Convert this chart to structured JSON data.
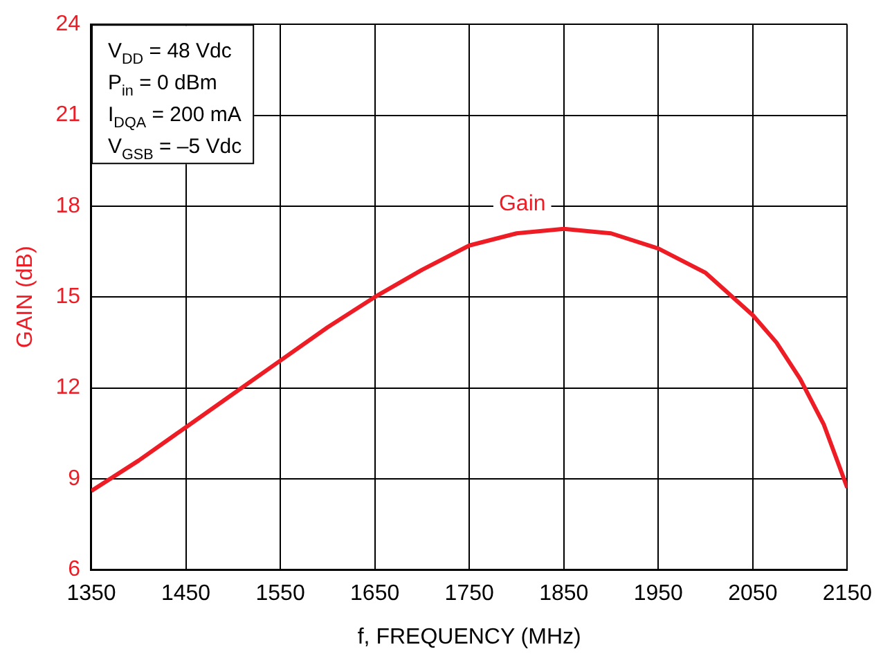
{
  "chart_data": {
    "type": "line",
    "xlabel": "f, FREQUENCY (MHz)",
    "ylabel": "GAIN (dB)",
    "x": [
      1350,
      1400,
      1450,
      1500,
      1550,
      1600,
      1650,
      1700,
      1750,
      1800,
      1850,
      1900,
      1950,
      2000,
      2050,
      2075,
      2100,
      2125,
      2150
    ],
    "series": [
      {
        "name": "Gain",
        "color": "#ee1c25",
        "values": [
          8.6,
          9.6,
          10.7,
          11.8,
          12.9,
          14.0,
          15.0,
          15.9,
          16.7,
          17.1,
          17.25,
          17.1,
          16.6,
          15.8,
          14.4,
          13.5,
          12.3,
          10.8,
          8.7
        ]
      }
    ],
    "xlim": [
      1350,
      2150
    ],
    "xticks": [
      1350,
      1450,
      1550,
      1650,
      1750,
      1850,
      1950,
      2050,
      2150
    ],
    "ylim": [
      6,
      24
    ],
    "yticks": [
      6,
      9,
      12,
      15,
      18,
      21,
      24
    ],
    "grid": true,
    "legend": false,
    "marker": "none",
    "line_style": "solid",
    "annotations": [
      "V$_{DD}$ = 48 Vdc",
      "P$_{in}$ = 0 dBm",
      "I$_{DQA}$ = 200 mA",
      "V$_{GSB}$ = –5 Vdc"
    ]
  }
}
